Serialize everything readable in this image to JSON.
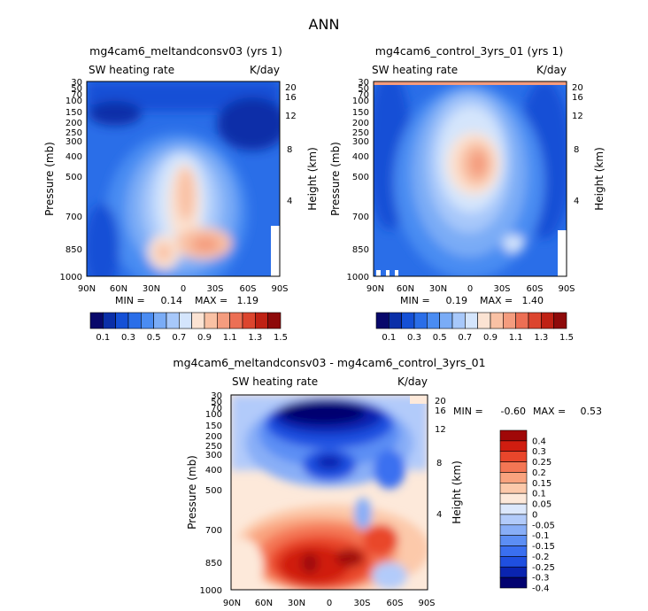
{
  "page": {
    "title": "ANN"
  },
  "colors": {
    "top_scale": [
      "#08086b",
      "#0a2fa8",
      "#1450d6",
      "#2a6ee8",
      "#4a8cf2",
      "#7aacf6",
      "#a7c8fa",
      "#d4e5fc",
      "#fbe3d3",
      "#f9c1a4",
      "#f49c7e",
      "#ec6f54",
      "#dc452e",
      "#bf2114",
      "#8e0a0a"
    ],
    "diff_scale": [
      "#020270",
      "#0a24b0",
      "#1f4fe0",
      "#3a6ff0",
      "#5c8ef4",
      "#88aef7",
      "#b2cbfa",
      "#dce8fc",
      "#fde9da",
      "#fcc9aa",
      "#f9a37e",
      "#f47654",
      "#e9462b",
      "#d01d10",
      "#a00808"
    ]
  },
  "chart_data": [
    {
      "type": "heatmap",
      "title": "mg4cam6_meltandconsv03 (yrs 1)",
      "subtitle_left": "SW heating rate",
      "subtitle_right": "K/day",
      "ylabel": "Pressure (mb)",
      "ylabel_right": "Height (km)",
      "x_ticks": [
        "90N",
        "60N",
        "30N",
        "0",
        "30S",
        "60S",
        "90S"
      ],
      "y_ticks": [
        "30",
        "50",
        "70",
        "100",
        "150",
        "200",
        "250",
        "300",
        "400",
        "500",
        "700",
        "850",
        "1000"
      ],
      "y_right_ticks": [
        "20",
        "16",
        "12",
        "8",
        "4"
      ],
      "min_label": "MIN =",
      "min": "0.14",
      "max_label": "MAX =",
      "max": "1.19",
      "colorbar_labels": [
        "0.1",
        "0.3",
        "0.5",
        "0.7",
        "0.9",
        "1.1",
        "1.3",
        "1.5"
      ]
    },
    {
      "type": "heatmap",
      "title": "mg4cam6_control_3yrs_01 (yrs 1)",
      "subtitle_left": "SW heating rate",
      "subtitle_right": "K/day",
      "ylabel": "Pressure (mb)",
      "ylabel_right": "Height (km)",
      "x_ticks": [
        "90N",
        "60N",
        "30N",
        "0",
        "30S",
        "60S",
        "90S"
      ],
      "y_ticks": [
        "30",
        "50",
        "70",
        "100",
        "150",
        "200",
        "250",
        "300",
        "400",
        "500",
        "700",
        "850",
        "1000"
      ],
      "y_right_ticks": [
        "20",
        "16",
        "12",
        "8",
        "4"
      ],
      "min_label": "MIN =",
      "min": "0.19",
      "max_label": "MAX =",
      "max": "1.40",
      "colorbar_labels": [
        "0.1",
        "0.3",
        "0.5",
        "0.7",
        "0.9",
        "1.1",
        "1.3",
        "1.5"
      ]
    },
    {
      "type": "heatmap",
      "title": "mg4cam6_meltandconsv03 - mg4cam6_control_3yrs_01",
      "subtitle_left": "SW heating rate",
      "subtitle_right": "K/day",
      "ylabel": "Pressure (mb)",
      "ylabel_right": "Height (km)",
      "x_ticks": [
        "90N",
        "60N",
        "30N",
        "0",
        "30S",
        "60S",
        "90S"
      ],
      "y_ticks": [
        "30",
        "50",
        "70",
        "100",
        "150",
        "200",
        "250",
        "300",
        "400",
        "500",
        "700",
        "850",
        "1000"
      ],
      "y_right_ticks": [
        "20",
        "16",
        "12",
        "8",
        "4"
      ],
      "min_label": "MIN =",
      "min": "-0.60",
      "max_label": "MAX =",
      "max": "0.53",
      "colorbar_labels": [
        "0.4",
        "0.3",
        "0.25",
        "0.2",
        "0.15",
        "0.1",
        "0.05",
        "0",
        "-0.05",
        "-0.1",
        "-0.15",
        "-0.2",
        "-0.25",
        "-0.3",
        "-0.4"
      ]
    }
  ]
}
